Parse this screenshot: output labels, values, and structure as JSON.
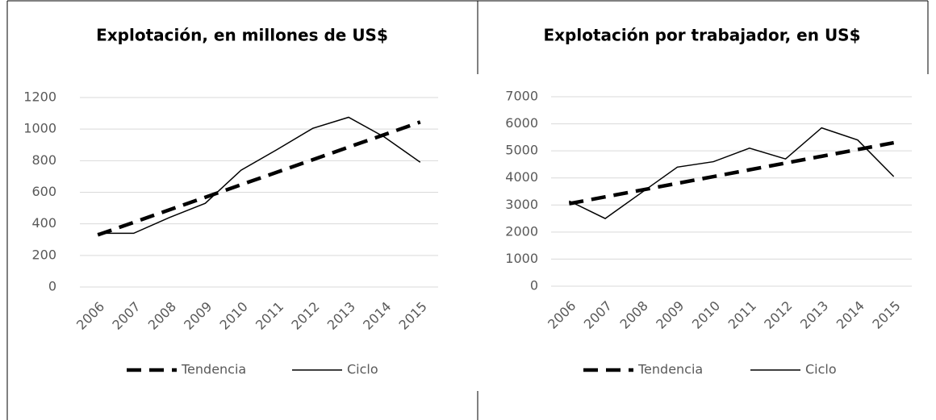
{
  "chart_data": [
    {
      "type": "line",
      "title": "Explotación, en millones de US$",
      "categories": [
        "2006",
        "2007",
        "2008",
        "2009",
        "2010",
        "2011",
        "2012",
        "2013",
        "2014",
        "2015"
      ],
      "series": [
        {
          "name": "Tendencia",
          "color": "#000000",
          "line_style": "dashed",
          "values": [
            330,
            409,
            489,
            568,
            648,
            727,
            806,
            886,
            965,
            1045
          ]
        },
        {
          "name": "Ciclo",
          "color": "#000000",
          "line_style": "solid",
          "values": [
            340,
            340,
            440,
            530,
            740,
            870,
            1005,
            1075,
            950,
            790
          ]
        }
      ],
      "ylim": [
        0,
        1200
      ],
      "yticks": [
        0,
        200,
        400,
        600,
        800,
        1000,
        1200
      ],
      "grid": true,
      "legend": "bottom"
    },
    {
      "type": "line",
      "title": "Explotación por trabajador, en US$",
      "categories": [
        "2006",
        "2007",
        "2008",
        "2009",
        "2010",
        "2011",
        "2012",
        "2013",
        "2014",
        "2015"
      ],
      "series": [
        {
          "name": "Tendencia",
          "color": "#000000",
          "line_style": "dashed",
          "values": [
            3050,
            3300,
            3550,
            3800,
            4050,
            4300,
            4550,
            4800,
            5050,
            5300
          ]
        },
        {
          "name": "Ciclo",
          "color": "#000000",
          "line_style": "solid",
          "values": [
            3150,
            2500,
            3450,
            4400,
            4600,
            5100,
            4700,
            5850,
            5400,
            4050
          ]
        }
      ],
      "ylim": [
        0,
        7000
      ],
      "yticks": [
        0,
        1000,
        2000,
        3000,
        4000,
        5000,
        6000,
        7000
      ],
      "grid": true,
      "legend": "bottom"
    }
  ]
}
